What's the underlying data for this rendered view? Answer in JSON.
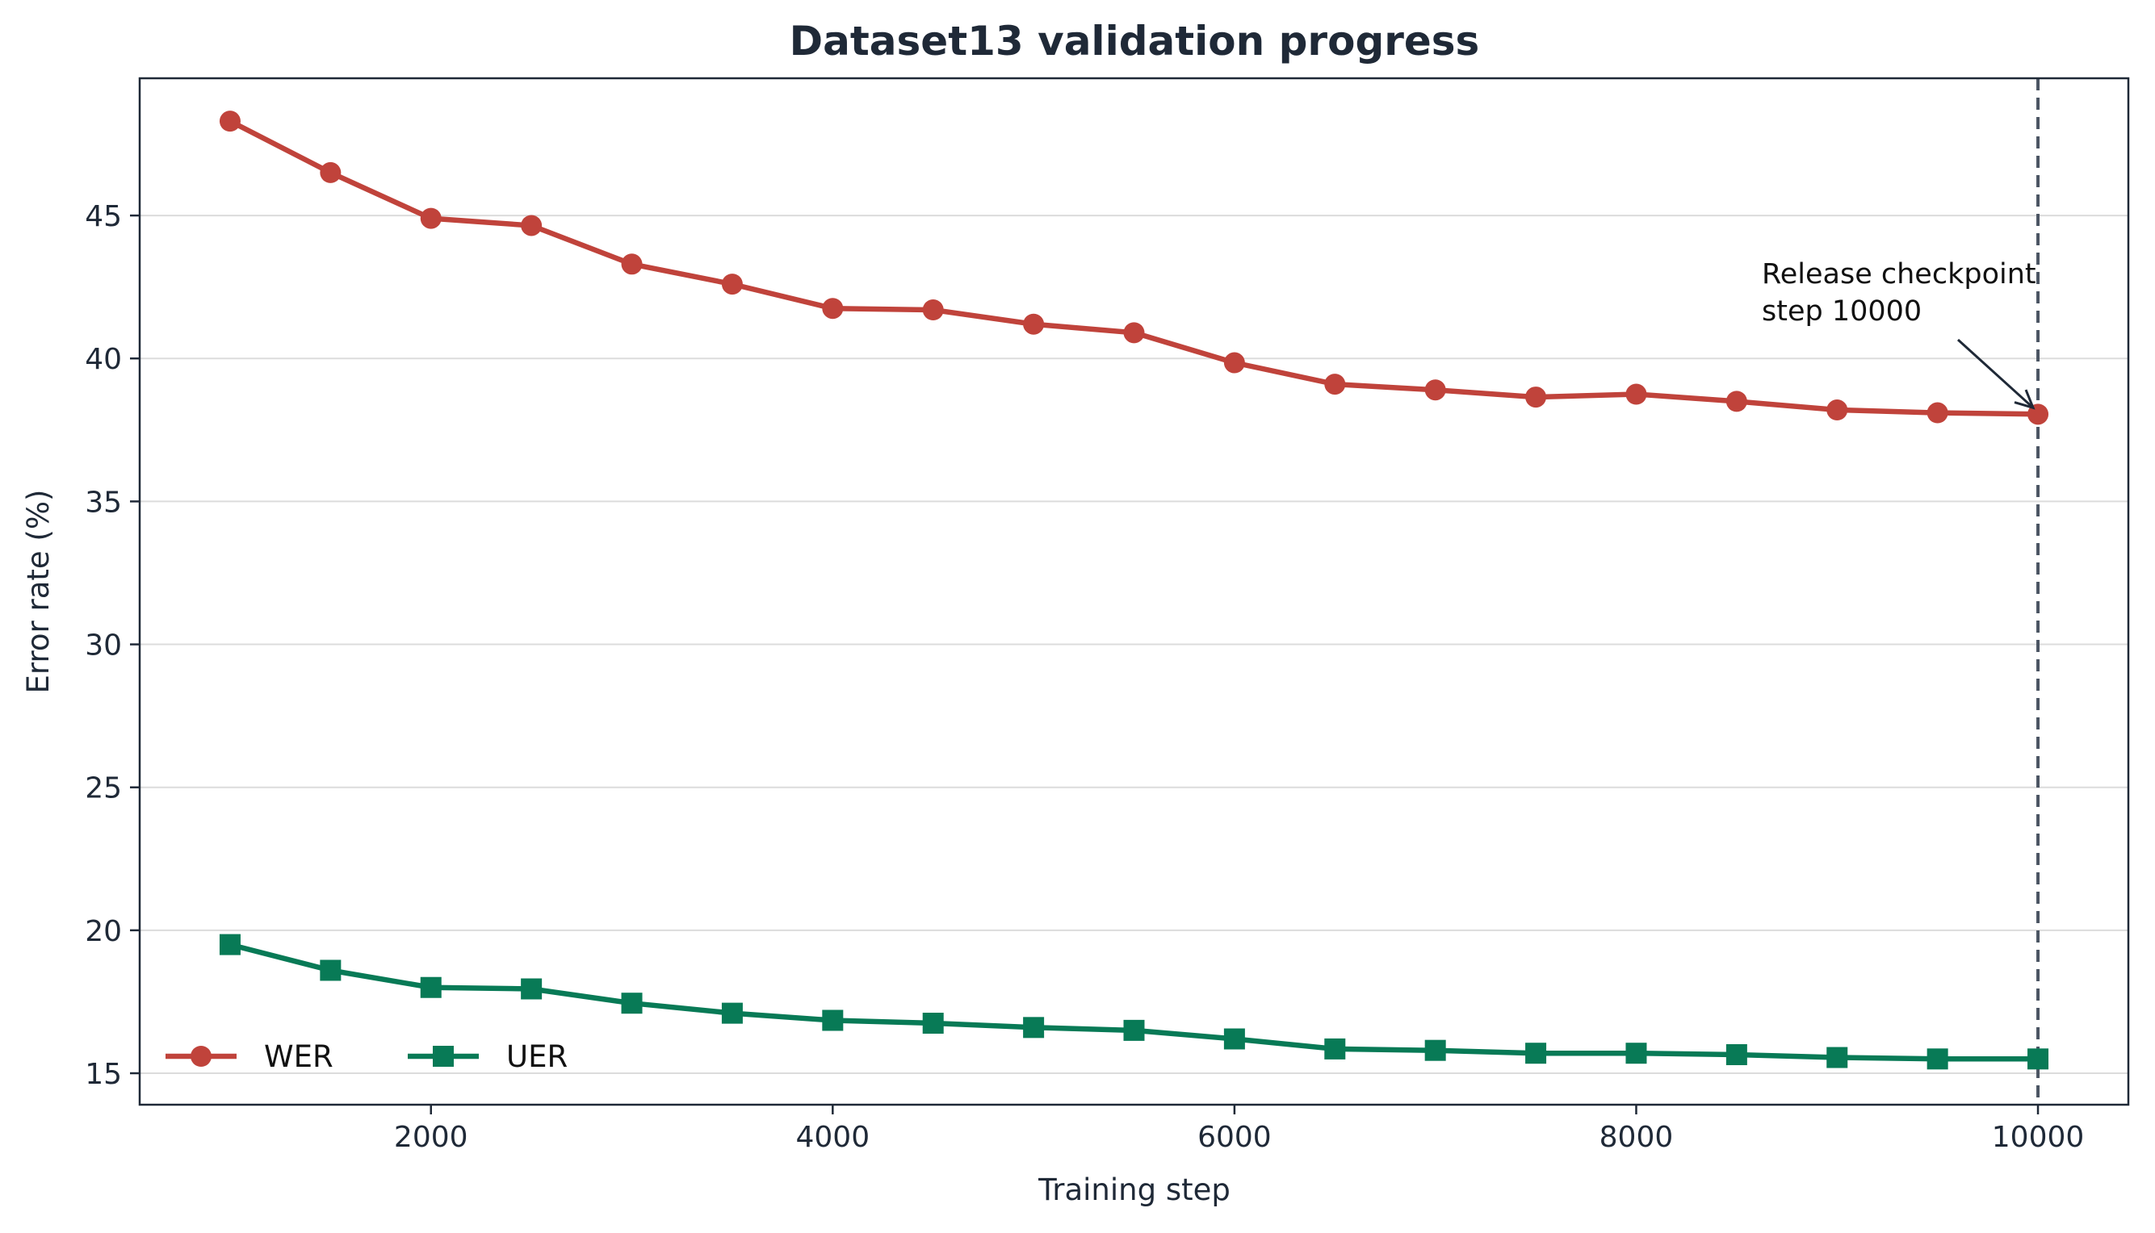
{
  "chart_data": {
    "type": "line",
    "title": "Dataset13 validation progress",
    "xlabel": "Training step",
    "ylabel": "Error rate (%)",
    "xlim": [
      550,
      10450
    ],
    "ylim": [
      13.9,
      49.8
    ],
    "xticks": [
      2000,
      4000,
      6000,
      8000,
      10000
    ],
    "yticks": [
      15,
      20,
      25,
      30,
      35,
      40,
      45
    ],
    "grid": "horizontal",
    "legend": "lower-left",
    "x": [
      1000,
      1500,
      2000,
      2500,
      3000,
      3500,
      4000,
      4500,
      5000,
      5500,
      6000,
      6500,
      7000,
      7500,
      8000,
      8500,
      9000,
      9500,
      10000
    ],
    "series": [
      {
        "name": "WER",
        "color": "#c0433b",
        "marker": "circle",
        "values": [
          48.3,
          46.5,
          44.9,
          44.65,
          43.3,
          42.6,
          41.75,
          41.7,
          41.2,
          40.9,
          39.85,
          39.1,
          38.9,
          38.65,
          38.75,
          38.5,
          38.2,
          38.1,
          38.05
        ]
      },
      {
        "name": "UER",
        "color": "#087a56",
        "marker": "square",
        "values": [
          19.5,
          18.6,
          18.0,
          17.95,
          17.45,
          17.1,
          16.85,
          16.75,
          16.6,
          16.5,
          16.2,
          15.85,
          15.8,
          15.7,
          15.7,
          15.65,
          15.55,
          15.5,
          15.5
        ]
      }
    ],
    "vline": {
      "x": 10000,
      "color": "#4b5563"
    },
    "annotation": {
      "lines": [
        "Release checkpoint",
        "step 10000"
      ],
      "target_x": 10000,
      "target_y": 38.05
    }
  }
}
